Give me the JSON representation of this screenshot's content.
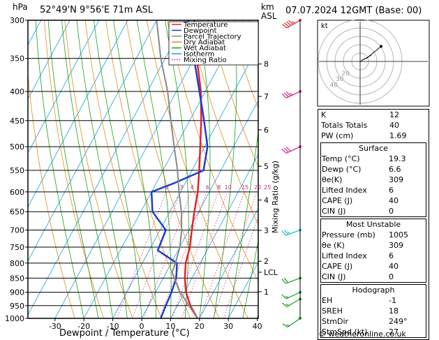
{
  "header": {
    "unit_left": "hPa",
    "location": "52°49'N  9°56'E  71m  ASL",
    "unit_right_km": "km",
    "unit_right_asl": "ASL",
    "datetime": "07.07.2024  12GMT  (Base: 00)"
  },
  "legend": [
    {
      "label": "Temperature",
      "color": "#e8202a",
      "style": "solid"
    },
    {
      "label": "Dewpoint",
      "color": "#1a3fd0",
      "style": "solid"
    },
    {
      "label": "Parcel Trajectory",
      "color": "#888888",
      "style": "solid"
    },
    {
      "label": "Dry Adiabat",
      "color": "#e58a18",
      "style": "solid"
    },
    {
      "label": "Wet Adiabat",
      "color": "#18a018",
      "style": "solid"
    },
    {
      "label": "Isotherm",
      "color": "#18a0e0",
      "style": "solid"
    },
    {
      "label": "Mixing Ratio",
      "color": "#d0208a",
      "style": "dotted"
    }
  ],
  "chart_data": {
    "type": "line",
    "title": "",
    "xlabel": "Dewpoint / Temperature (°C)",
    "ylabel": "hPa",
    "right_label": "Mixing Ratio (g/kg)",
    "x_ticks": [
      "-30",
      "-20",
      "-10",
      "0",
      "10",
      "20",
      "30",
      "40"
    ],
    "xlim": [
      -40,
      40
    ],
    "pressure_ticks": [
      "300",
      "350",
      "400",
      "450",
      "500",
      "550",
      "600",
      "650",
      "700",
      "750",
      "800",
      "850",
      "900",
      "950",
      "1000"
    ],
    "ylim": [
      1000,
      300
    ],
    "km_ticks": [
      {
        "label": "8",
        "p": 358
      },
      {
        "label": "7",
        "p": 408
      },
      {
        "label": "6",
        "p": 467
      },
      {
        "label": "5",
        "p": 541
      },
      {
        "label": "4",
        "p": 620
      },
      {
        "label": "3",
        "p": 701
      },
      {
        "label": "2",
        "p": 794
      },
      {
        "label": "LCL",
        "p": 830
      },
      {
        "label": "1",
        "p": 898
      }
    ],
    "mixing_ratio_labels": [
      "2",
      "3",
      "4",
      "6",
      "8",
      "10",
      "15",
      "20",
      "25"
    ],
    "mixing_ratio_label_p": 595,
    "series": [
      {
        "name": "Temperature",
        "color": "#e8202a",
        "points": [
          [
            1000,
            19.3
          ],
          [
            950,
            14.5
          ],
          [
            900,
            10.5
          ],
          [
            850,
            7.5
          ],
          [
            800,
            5.0
          ],
          [
            750,
            3.5
          ],
          [
            700,
            1.0
          ],
          [
            650,
            -1.5
          ],
          [
            600,
            -4.0
          ],
          [
            550,
            -7.5
          ],
          [
            500,
            -11.5
          ],
          [
            450,
            -16.0
          ],
          [
            400,
            -21.5
          ],
          [
            350,
            -29.0
          ],
          [
            300,
            -37.0
          ]
        ]
      },
      {
        "name": "Dewpoint",
        "color": "#1a3fd0",
        "points": [
          [
            1000,
            6.6
          ],
          [
            950,
            6.0
          ],
          [
            900,
            5.5
          ],
          [
            850,
            4.5
          ],
          [
            800,
            2.0
          ],
          [
            760,
            -7.0
          ],
          [
            700,
            -8.0
          ],
          [
            650,
            -16.0
          ],
          [
            600,
            -20.0
          ],
          [
            580,
            -14.0
          ],
          [
            550,
            -6.0
          ],
          [
            500,
            -9.0
          ],
          [
            450,
            -15.0
          ],
          [
            400,
            -22.0
          ],
          [
            350,
            -30.0
          ],
          [
            300,
            -39.0
          ]
        ]
      },
      {
        "name": "Parcel Trajectory",
        "color": "#888888",
        "points": [
          [
            1000,
            19.3
          ],
          [
            950,
            14.0
          ],
          [
            900,
            8.5
          ],
          [
            830,
            2.0
          ],
          [
            800,
            1.5
          ],
          [
            750,
            0.0
          ],
          [
            700,
            -2.5
          ],
          [
            650,
            -6.0
          ],
          [
            600,
            -10.5
          ],
          [
            550,
            -15.0
          ],
          [
            500,
            -20.5
          ],
          [
            450,
            -26.5
          ],
          [
            400,
            -33.0
          ],
          [
            350,
            -41.5
          ],
          [
            300,
            -50.0
          ]
        ]
      }
    ],
    "wind_barbs": [
      {
        "p": 300,
        "dir": 240,
        "speed_kt": 45,
        "color": "#e8202a"
      },
      {
        "p": 400,
        "dir": 245,
        "speed_kt": 35,
        "color": "#d0208a"
      },
      {
        "p": 500,
        "dir": 245,
        "speed_kt": 30,
        "color": "#d0208a"
      },
      {
        "p": 700,
        "dir": 250,
        "speed_kt": 25,
        "color": "#18b8d0"
      },
      {
        "p": 850,
        "dir": 250,
        "speed_kt": 20,
        "color": "#18a018"
      },
      {
        "p": 900,
        "dir": 245,
        "speed_kt": 15,
        "color": "#18a018"
      },
      {
        "p": 925,
        "dir": 240,
        "speed_kt": 15,
        "color": "#18a018"
      },
      {
        "p": 1000,
        "dir": 235,
        "speed_kt": 15,
        "color": "#18a018"
      }
    ]
  },
  "hodograph": {
    "unit": "kt",
    "ring_labels": [
      "20",
      "30",
      "40"
    ],
    "hodo_points_kt": [
      [
        3,
        2
      ],
      [
        8,
        4
      ],
      [
        13,
        8
      ],
      [
        19,
        13
      ],
      [
        25,
        18
      ]
    ]
  },
  "indices": [
    {
      "label": "K",
      "value": "12"
    },
    {
      "label": "Totals Totals",
      "value": "40"
    },
    {
      "label": "PW (cm)",
      "value": "1.69"
    }
  ],
  "surface": {
    "title": "Surface",
    "rows": [
      {
        "label": "Temp (°C)",
        "value": "19.3"
      },
      {
        "label": "Dewp (°C)",
        "value": "6.6"
      },
      {
        "label": "θe(K)",
        "value": "309"
      },
      {
        "label": "Lifted Index",
        "value": "6"
      },
      {
        "label": "CAPE (J)",
        "value": "40"
      },
      {
        "label": "CIN (J)",
        "value": "0"
      }
    ]
  },
  "most_unstable": {
    "title": "Most Unstable",
    "rows": [
      {
        "label": "Pressure (mb)",
        "value": "1005"
      },
      {
        "label": "θe (K)",
        "value": "309"
      },
      {
        "label": "Lifted Index",
        "value": "6"
      },
      {
        "label": "CAPE (J)",
        "value": "40"
      },
      {
        "label": "CIN (J)",
        "value": "0"
      }
    ]
  },
  "hodograph_table": {
    "title": "Hodograph",
    "rows": [
      {
        "label": "EH",
        "value": "-1"
      },
      {
        "label": "SREH",
        "value": "18"
      },
      {
        "label": "StmDir",
        "value": "249°"
      },
      {
        "label": "StmSpd (kt)",
        "value": "27"
      }
    ]
  },
  "footer": {
    "copyright": "© weatheronline.co.uk"
  }
}
